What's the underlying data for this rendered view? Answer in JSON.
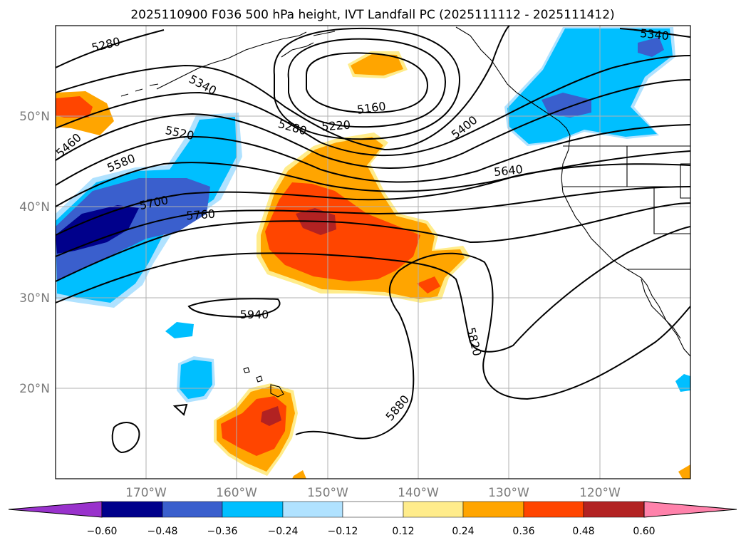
{
  "title": "2025110900 F036 500 hPa height, IVT Landfall PC (2025111112 - 2025111412)",
  "map": {
    "lat_labels": [
      "50°N",
      "40°N",
      "30°N",
      "20°N"
    ],
    "lon_labels": [
      "170°W",
      "160°W",
      "150°W",
      "140°W",
      "130°W",
      "120°W"
    ],
    "contour_labels": [
      "5280",
      "5340",
      "5160",
      "5220",
      "5280",
      "5400",
      "5340",
      "5460",
      "5520",
      "5580",
      "5640",
      "5700",
      "5760",
      "5940",
      "5820",
      "5880"
    ]
  },
  "colorbar": {
    "colors": [
      "#9932cc",
      "#00008b",
      "#3a5fcd",
      "#00bfff",
      "#b0e2ff",
      "#ffffff",
      "#ffec8b",
      "#ffa500",
      "#ff4500",
      "#b22222",
      "#ff82ab"
    ],
    "tick_labels": [
      "−0.60",
      "−0.48",
      "−0.36",
      "−0.24",
      "−0.12",
      "0.12",
      "0.24",
      "0.36",
      "0.48",
      "0.60"
    ]
  }
}
